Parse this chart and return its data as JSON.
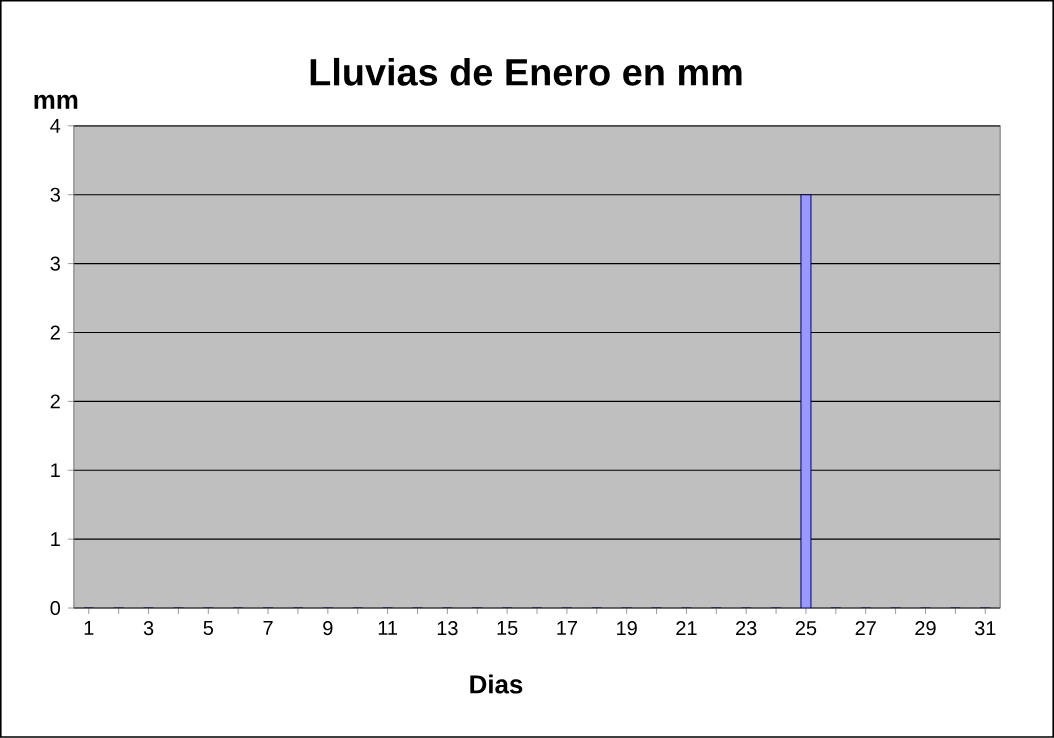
{
  "chart_data": {
    "type": "bar",
    "title": "Lluvias de Enero en mm",
    "xlabel": "Dias",
    "ylabel": "mm",
    "categories": [
      "1",
      null,
      "3",
      null,
      "5",
      null,
      "7",
      null,
      "9",
      null,
      "11",
      null,
      "13",
      null,
      "15",
      null,
      "17",
      null,
      "19",
      null,
      "21",
      null,
      "23",
      null,
      "25",
      null,
      "27",
      null,
      "29",
      null,
      "31"
    ],
    "values": [
      0,
      0,
      0,
      0,
      0,
      0,
      0,
      0,
      0,
      0,
      0,
      0,
      0,
      0,
      0,
      0,
      0,
      0,
      0,
      0,
      0,
      0,
      0,
      0,
      3,
      0,
      0,
      0,
      0,
      0,
      0
    ],
    "color": "#9999ff",
    "ylim": [
      0,
      3.5
    ],
    "yticks": [
      0,
      {
        "value": 0.5,
        "label": "1"
      },
      1,
      {
        "value": 1.5,
        "label": "2"
      },
      2,
      {
        "value": 2.5,
        "label": "3"
      },
      3,
      {
        "value": 3.5,
        "label": "4"
      }
    ],
    "grid": "y"
  }
}
